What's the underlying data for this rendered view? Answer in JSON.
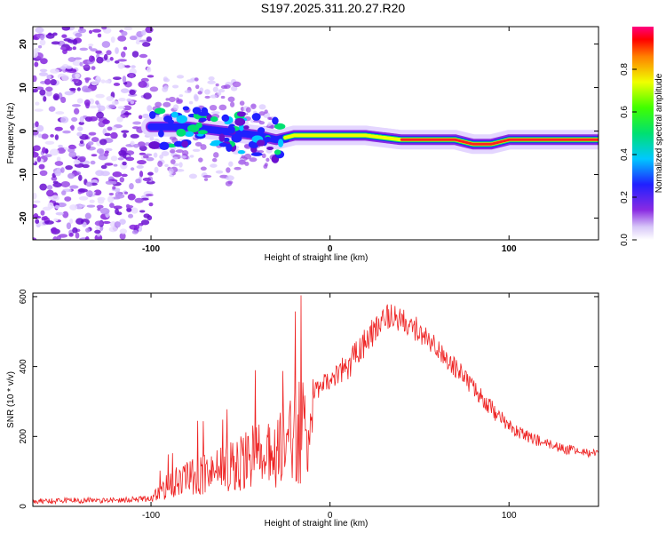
{
  "title": "S197.2025.311.20.27.R20",
  "chart_data": [
    {
      "type": "heatmap",
      "xlabel": "Height of straight line (km)",
      "ylabel": "Frequency (Hz)",
      "xlim": [
        -166,
        150
      ],
      "ylim": [
        -25,
        24
      ],
      "xticks": [
        "-100",
        "0",
        "100"
      ],
      "yticks": [
        "20",
        "10",
        "0",
        "-10",
        "-20"
      ],
      "colorbar": {
        "label": "Normalized spectral amplitude",
        "ticks": [
          "0.0",
          "0.2",
          "0.4",
          "0.6",
          "0.8"
        ],
        "range": [
          0,
          1
        ]
      },
      "ridge": {
        "x": [
          -100,
          -80,
          -60,
          -40,
          -30,
          -20,
          0,
          20,
          40,
          60,
          70,
          80,
          90,
          100,
          110,
          120,
          150
        ],
        "y": [
          1,
          1,
          0,
          -1,
          -2,
          -1,
          -1,
          -1,
          -2,
          -2,
          -2,
          -3,
          -3,
          -2,
          -2,
          -2,
          -2
        ]
      },
      "noise_region": {
        "x": [
          -166,
          -100
        ],
        "y": [
          -25,
          24
        ]
      }
    },
    {
      "type": "line",
      "xlabel": "Height of straight line (km)",
      "ylabel": "SNR (10 * v/v)",
      "xlim": [
        -166,
        150
      ],
      "ylim": [
        0,
        610
      ],
      "xticks": [
        "-100",
        "0",
        "100"
      ],
      "yticks": [
        "0",
        "200",
        "400",
        "600"
      ],
      "series": [
        {
          "name": "SNR",
          "color": "#ee2222",
          "envelope": {
            "x": [
              -166,
              -120,
              -100,
              -90,
              -80,
              -70,
              -60,
              -50,
              -40,
              -30,
              -20,
              -12,
              -8,
              0,
              10,
              20,
              30,
              40,
              50,
              60,
              70,
              80,
              90,
              100,
              110,
              120,
              130,
              140,
              150
            ],
            "mean": [
              15,
              18,
              22,
              60,
              80,
              95,
              110,
              125,
              145,
              165,
              200,
              230,
              320,
              360,
              400,
              470,
              540,
              540,
              500,
              450,
              400,
              340,
              280,
              230,
              200,
              180,
              165,
              155,
              145
            ],
            "spread": [
              8,
              8,
              10,
              40,
              50,
              60,
              70,
              80,
              100,
              120,
              140,
              160,
              40,
              35,
              40,
              45,
              40,
              40,
              35,
              30,
              30,
              25,
              25,
              20,
              18,
              15,
              15,
              15,
              15
            ]
          }
        }
      ]
    }
  ]
}
